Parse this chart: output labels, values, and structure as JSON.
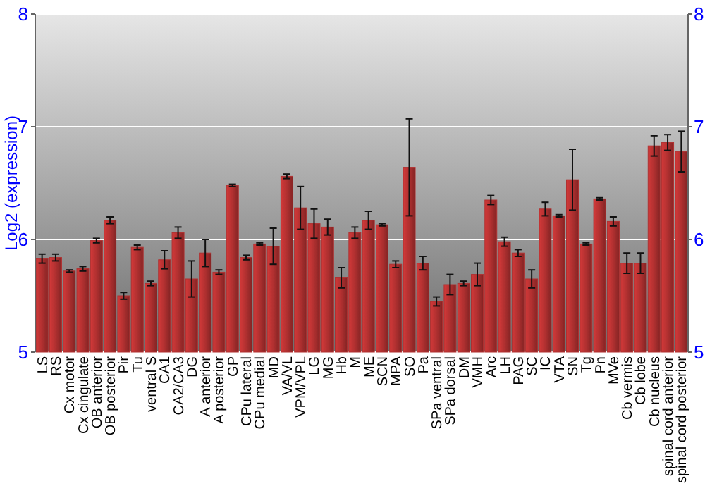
{
  "chart_data": {
    "type": "bar",
    "ylabel": "Log2 (expression)",
    "categories": [
      "LS",
      "RS",
      "Cx motor",
      "Cx cingulate",
      "OB anterior",
      "OB posterior",
      "Pir",
      "Tu",
      "ventral S",
      "CA1",
      "CA2/CA3",
      "DG",
      "A anterior",
      "A posterior",
      "GP",
      "CPu lateral",
      "CPu medial",
      "MD",
      "VA/VL",
      "VPM/VPL",
      "LG",
      "MG",
      "Hb",
      "M",
      "ME",
      "SCN",
      "MPA",
      "SO",
      "Pa",
      "SPa ventral",
      "SPa dorsal",
      "DM",
      "VMH",
      "Arc",
      "LH",
      "PAG",
      "SC",
      "IC",
      "VTA",
      "SN",
      "Tg",
      "Pn",
      "MVe",
      "Cb vermis",
      "Cb lobe",
      "Cb nucleus",
      "spinal cord anterior",
      "spinal cord posterior"
    ],
    "values": [
      5.83,
      5.84,
      5.72,
      5.74,
      5.99,
      6.17,
      5.5,
      5.93,
      5.61,
      5.82,
      6.06,
      5.65,
      5.88,
      5.71,
      6.48,
      5.84,
      5.96,
      5.94,
      6.56,
      6.28,
      6.14,
      6.11,
      5.66,
      6.06,
      6.17,
      6.13,
      5.78,
      6.64,
      5.79,
      5.45,
      5.6,
      5.61,
      5.69,
      6.35,
      5.98,
      5.88,
      5.65,
      6.27,
      6.21,
      6.53,
      5.96,
      6.36,
      6.16,
      5.79,
      5.79,
      6.83,
      6.86,
      6.78
    ],
    "errors": [
      0.04,
      0.03,
      0.01,
      0.02,
      0.02,
      0.03,
      0.03,
      0.02,
      0.02,
      0.08,
      0.05,
      0.16,
      0.12,
      0.02,
      0.01,
      0.02,
      0.01,
      0.16,
      0.02,
      0.19,
      0.13,
      0.07,
      0.09,
      0.05,
      0.08,
      0.01,
      0.03,
      0.43,
      0.06,
      0.04,
      0.09,
      0.02,
      0.1,
      0.04,
      0.04,
      0.03,
      0.08,
      0.06,
      0.01,
      0.27,
      0.01,
      0.01,
      0.04,
      0.09,
      0.09,
      0.09,
      0.07,
      0.18
    ],
    "color": "#b03030",
    "ylim": [
      5,
      8
    ],
    "yticks": [
      5,
      6,
      7,
      8
    ],
    "y2lim": [
      5,
      8
    ],
    "y2ticks": [
      5,
      6,
      7,
      8
    ],
    "grid": "y"
  }
}
